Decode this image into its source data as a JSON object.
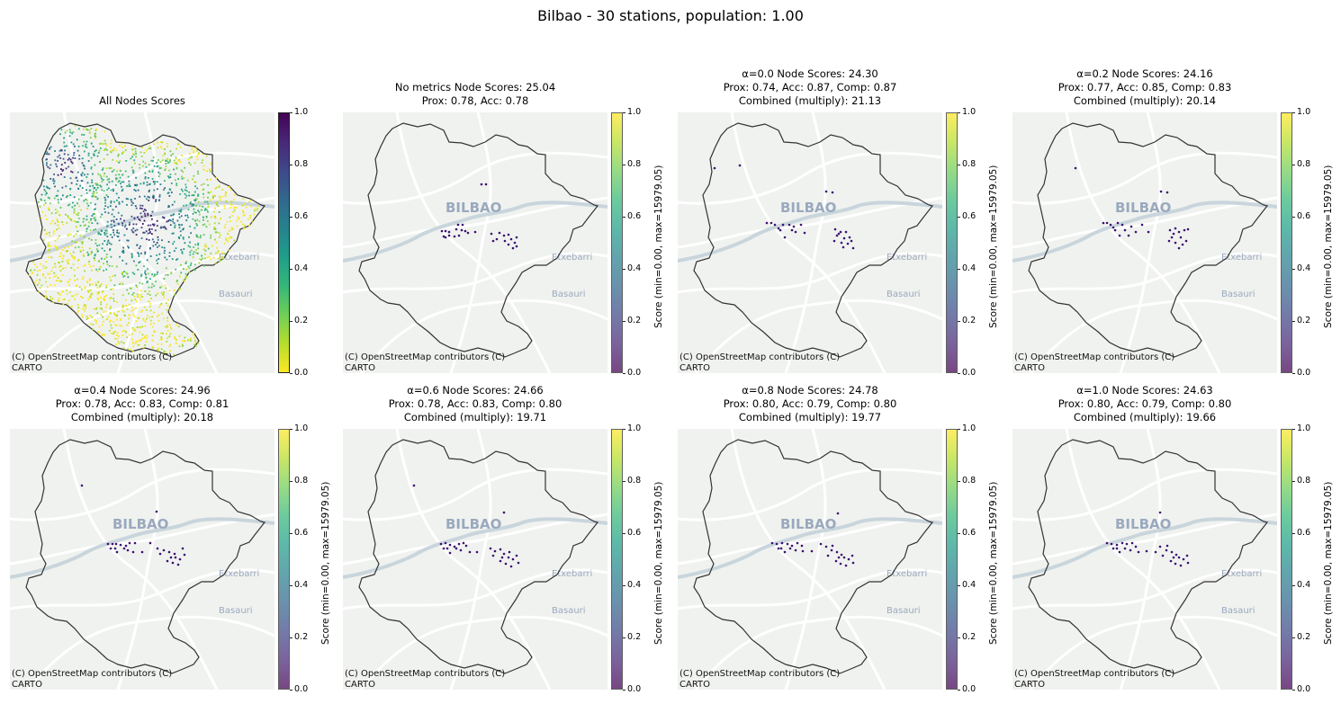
{
  "figure": {
    "suptitle": "Bilbao - 30 stations, population: 1.00",
    "attribution_line1": "(C) OpenStreetMap contributors (C)",
    "attribution_line2": "CARTO",
    "map_labels": [
      "BILBAO",
      "Etxebarri",
      "Basauri"
    ],
    "colors": {
      "map_bg": "#f0f2ef",
      "boundary": "#333333",
      "roads": "#ffffff",
      "river": "#c9d5dc"
    }
  },
  "chart_data": [
    {
      "type": "scatter",
      "title_lines": [
        "All Nodes Scores"
      ],
      "colormap": "viridis_r",
      "colorbar_label": "",
      "colorbar_ticks": [
        "0.0",
        "0.2",
        "0.4",
        "0.6",
        "0.8",
        "1.0"
      ],
      "clim": [
        0,
        1
      ],
      "show_city_label": false,
      "series": [
        {
          "description": "all network nodes",
          "n_points": 1800
        }
      ]
    },
    {
      "type": "scatter",
      "title_lines": [
        "No metrics Node Scores: 25.04",
        "Prox: 0.78, Acc: 0.78"
      ],
      "colormap": "viridis",
      "colorbar_label": "Score (min=0.00, max=15979.05)",
      "colorbar_ticks": [
        "0.0",
        "0.2",
        "0.4",
        "0.6",
        "0.8",
        "1.0"
      ],
      "clim": [
        0,
        1
      ],
      "show_city_label": true,
      "stations": [
        [
          535,
          205
        ],
        [
          540,
          205
        ],
        [
          491,
          257
        ],
        [
          495,
          257
        ],
        [
          499,
          258
        ],
        [
          507,
          255
        ],
        [
          509,
          250
        ],
        [
          514,
          250
        ],
        [
          513,
          256
        ],
        [
          517,
          257
        ],
        [
          495,
          264
        ],
        [
          505,
          263
        ],
        [
          520,
          259
        ],
        [
          528,
          258
        ],
        [
          499,
          262
        ],
        [
          546,
          260
        ],
        [
          555,
          259
        ],
        [
          560,
          262
        ],
        [
          561,
          268
        ],
        [
          565,
          261
        ],
        [
          568,
          266
        ],
        [
          572,
          270
        ],
        [
          565,
          272
        ],
        [
          574,
          264
        ],
        [
          548,
          268
        ],
        [
          552,
          266
        ],
        [
          570,
          276
        ],
        [
          574,
          274
        ],
        [
          493,
          263
        ],
        [
          510,
          262
        ]
      ]
    },
    {
      "type": "scatter",
      "title_lines": [
        "α=0.0 Node Scores: 24.30",
        "Prox: 0.74, Acc: 0.87, Comp: 0.87",
        "Combined (multiply): 21.13"
      ],
      "colormap": "viridis",
      "colorbar_label": "Score (min=0.00, max=15979.05)",
      "colorbar_ticks": [
        "0.0",
        "0.2",
        "0.4",
        "0.6",
        "0.8",
        "1.0"
      ],
      "clim": [
        0,
        1
      ],
      "show_city_label": true,
      "stations": [
        [
          422,
          187
        ],
        [
          450,
          184
        ],
        [
          546,
          213
        ],
        [
          553,
          214
        ],
        [
          480,
          248
        ],
        [
          485,
          248
        ],
        [
          489,
          250
        ],
        [
          498,
          250
        ],
        [
          505,
          250
        ],
        [
          510,
          252
        ],
        [
          518,
          250
        ],
        [
          495,
          256
        ],
        [
          508,
          256
        ],
        [
          522,
          259
        ],
        [
          500,
          264
        ],
        [
          556,
          255
        ],
        [
          562,
          258
        ],
        [
          558,
          262
        ],
        [
          568,
          258
        ],
        [
          572,
          264
        ],
        [
          566,
          265
        ],
        [
          574,
          268
        ],
        [
          563,
          270
        ],
        [
          570,
          271
        ],
        [
          565,
          275
        ],
        [
          576,
          276
        ],
        [
          560,
          260
        ],
        [
          493,
          254
        ],
        [
          512,
          258
        ],
        [
          555,
          268
        ]
      ]
    },
    {
      "type": "scatter",
      "title_lines": [
        "α=0.2 Node Scores: 24.16",
        "Prox: 0.77, Acc: 0.85, Comp: 0.83",
        "Combined (multiply): 20.14"
      ],
      "colormap": "viridis",
      "colorbar_label": "Score (min=0.00, max=15979.05)",
      "colorbar_ticks": [
        "0.0",
        "0.2",
        "0.4",
        "0.6",
        "0.8",
        "1.0"
      ],
      "clim": [
        0,
        1
      ],
      "show_city_label": true,
      "stations": [
        [
          451,
          187
        ],
        [
          546,
          213
        ],
        [
          553,
          214
        ],
        [
          482,
          248
        ],
        [
          486,
          248
        ],
        [
          490,
          250
        ],
        [
          498,
          248
        ],
        [
          503,
          250
        ],
        [
          513,
          252
        ],
        [
          525,
          250
        ],
        [
          495,
          256
        ],
        [
          506,
          256
        ],
        [
          518,
          258
        ],
        [
          500,
          262
        ],
        [
          532,
          258
        ],
        [
          556,
          256
        ],
        [
          560,
          260
        ],
        [
          566,
          258
        ],
        [
          572,
          256
        ],
        [
          558,
          264
        ],
        [
          568,
          264
        ],
        [
          574,
          268
        ],
        [
          562,
          270
        ],
        [
          570,
          272
        ],
        [
          566,
          276
        ],
        [
          576,
          255
        ],
        [
          562,
          254
        ],
        [
          493,
          253
        ],
        [
          510,
          262
        ],
        [
          555,
          268
        ]
      ]
    },
    {
      "type": "scatter",
      "title_lines": [
        "α=0.4 Node Scores: 24.96",
        "Prox: 0.78, Acc: 0.83, Comp: 0.81",
        "Combined (multiply): 20.18"
      ],
      "colormap": "viridis",
      "colorbar_label": "Score (min=0.00, max=15979.05)",
      "colorbar_ticks": [
        "0.0",
        "0.2",
        "0.4",
        "0.6",
        "0.8",
        "1.0"
      ],
      "clim": [
        0,
        1
      ],
      "show_city_label": true,
      "stations": [
        [
          461,
          188
        ],
        [
          544,
          217
        ],
        [
          490,
          253
        ],
        [
          495,
          253
        ],
        [
          499,
          253
        ],
        [
          504,
          254
        ],
        [
          510,
          255
        ],
        [
          514,
          252
        ],
        [
          520,
          252
        ],
        [
          498,
          258
        ],
        [
          508,
          258
        ],
        [
          518,
          262
        ],
        [
          500,
          262
        ],
        [
          528,
          262
        ],
        [
          537,
          252
        ],
        [
          545,
          258
        ],
        [
          552,
          260
        ],
        [
          558,
          262
        ],
        [
          564,
          264
        ],
        [
          560,
          268
        ],
        [
          565,
          268
        ],
        [
          570,
          270
        ],
        [
          575,
          265
        ],
        [
          556,
          272
        ],
        [
          562,
          274
        ],
        [
          568,
          276
        ],
        [
          548,
          264
        ],
        [
          493,
          258
        ],
        [
          512,
          260
        ],
        [
          573,
          258
        ]
      ]
    },
    {
      "type": "scatter",
      "title_lines": [
        "α=0.6 Node Scores: 24.66",
        "Prox: 0.78, Acc: 0.83, Comp: 0.80",
        "Combined (multiply): 19.71"
      ],
      "colormap": "viridis",
      "colorbar_label": "Score (min=0.00, max=15979.05)",
      "colorbar_ticks": [
        "0.0",
        "0.2",
        "0.4",
        "0.6",
        "0.8",
        "1.0"
      ],
      "clim": [
        0,
        1
      ],
      "show_city_label": true,
      "stations": [
        [
          460,
          188
        ],
        [
          560,
          218
        ],
        [
          490,
          253
        ],
        [
          495,
          252
        ],
        [
          500,
          254
        ],
        [
          505,
          256
        ],
        [
          510,
          253
        ],
        [
          515,
          252
        ],
        [
          518,
          255
        ],
        [
          497,
          258
        ],
        [
          507,
          258
        ],
        [
          522,
          262
        ],
        [
          500,
          263
        ],
        [
          530,
          262
        ],
        [
          545,
          258
        ],
        [
          550,
          261
        ],
        [
          556,
          259
        ],
        [
          560,
          264
        ],
        [
          566,
          262
        ],
        [
          558,
          268
        ],
        [
          565,
          268
        ],
        [
          570,
          270
        ],
        [
          574,
          266
        ],
        [
          556,
          272
        ],
        [
          562,
          275
        ],
        [
          568,
          278
        ],
        [
          548,
          266
        ],
        [
          493,
          258
        ],
        [
          512,
          260
        ],
        [
          576,
          274
        ]
      ]
    },
    {
      "type": "scatter",
      "title_lines": [
        "α=0.8 Node Scores: 24.78",
        "Prox: 0.80, Acc: 0.79, Comp: 0.80",
        "Combined (multiply): 19.77"
      ],
      "colormap": "viridis",
      "colorbar_label": "Score (min=0.00, max=15979.05)",
      "colorbar_ticks": [
        "0.0",
        "0.2",
        "0.4",
        "0.6",
        "0.8",
        "1.0"
      ],
      "clim": [
        0,
        1
      ],
      "show_city_label": true,
      "stations": [
        [
          559,
          219
        ],
        [
          486,
          252
        ],
        [
          491,
          253
        ],
        [
          497,
          252
        ],
        [
          503,
          253
        ],
        [
          508,
          255
        ],
        [
          514,
          252
        ],
        [
          519,
          255
        ],
        [
          496,
          258
        ],
        [
          506,
          258
        ],
        [
          520,
          261
        ],
        [
          500,
          262
        ],
        [
          530,
          261
        ],
        [
          540,
          253
        ],
        [
          546,
          256
        ],
        [
          552,
          260
        ],
        [
          558,
          262
        ],
        [
          563,
          265
        ],
        [
          560,
          268
        ],
        [
          566,
          268
        ],
        [
          571,
          270
        ],
        [
          575,
          266
        ],
        [
          557,
          272
        ],
        [
          562,
          275
        ],
        [
          568,
          277
        ],
        [
          548,
          266
        ],
        [
          493,
          258
        ],
        [
          512,
          260
        ],
        [
          576,
          274
        ],
        [
          553,
          255
        ]
      ]
    },
    {
      "type": "scatter",
      "title_lines": [
        "α=1.0 Node Scores: 24.63",
        "Prox: 0.80, Acc: 0.79, Comp: 0.80",
        "Combined (multiply): 19.66"
      ],
      "colormap": "viridis",
      "colorbar_label": "Score (min=0.00, max=15979.05)",
      "colorbar_ticks": [
        "0.0",
        "0.2",
        "0.4",
        "0.6",
        "0.8",
        "1.0"
      ],
      "clim": [
        0,
        1
      ],
      "show_city_label": true,
      "stations": [
        [
          545,
          218
        ],
        [
          486,
          252
        ],
        [
          491,
          253
        ],
        [
          497,
          254
        ],
        [
          503,
          252
        ],
        [
          508,
          253
        ],
        [
          514,
          252
        ],
        [
          518,
          256
        ],
        [
          497,
          258
        ],
        [
          506,
          258
        ],
        [
          521,
          262
        ],
        [
          500,
          262
        ],
        [
          530,
          261
        ],
        [
          545,
          256
        ],
        [
          552,
          260
        ],
        [
          558,
          262
        ],
        [
          563,
          265
        ],
        [
          560,
          268
        ],
        [
          566,
          268
        ],
        [
          571,
          270
        ],
        [
          575,
          266
        ],
        [
          557,
          272
        ],
        [
          562,
          275
        ],
        [
          568,
          277
        ],
        [
          548,
          266
        ],
        [
          493,
          258
        ],
        [
          512,
          260
        ],
        [
          576,
          274
        ],
        [
          553,
          255
        ],
        [
          540,
          262
        ]
      ]
    }
  ]
}
